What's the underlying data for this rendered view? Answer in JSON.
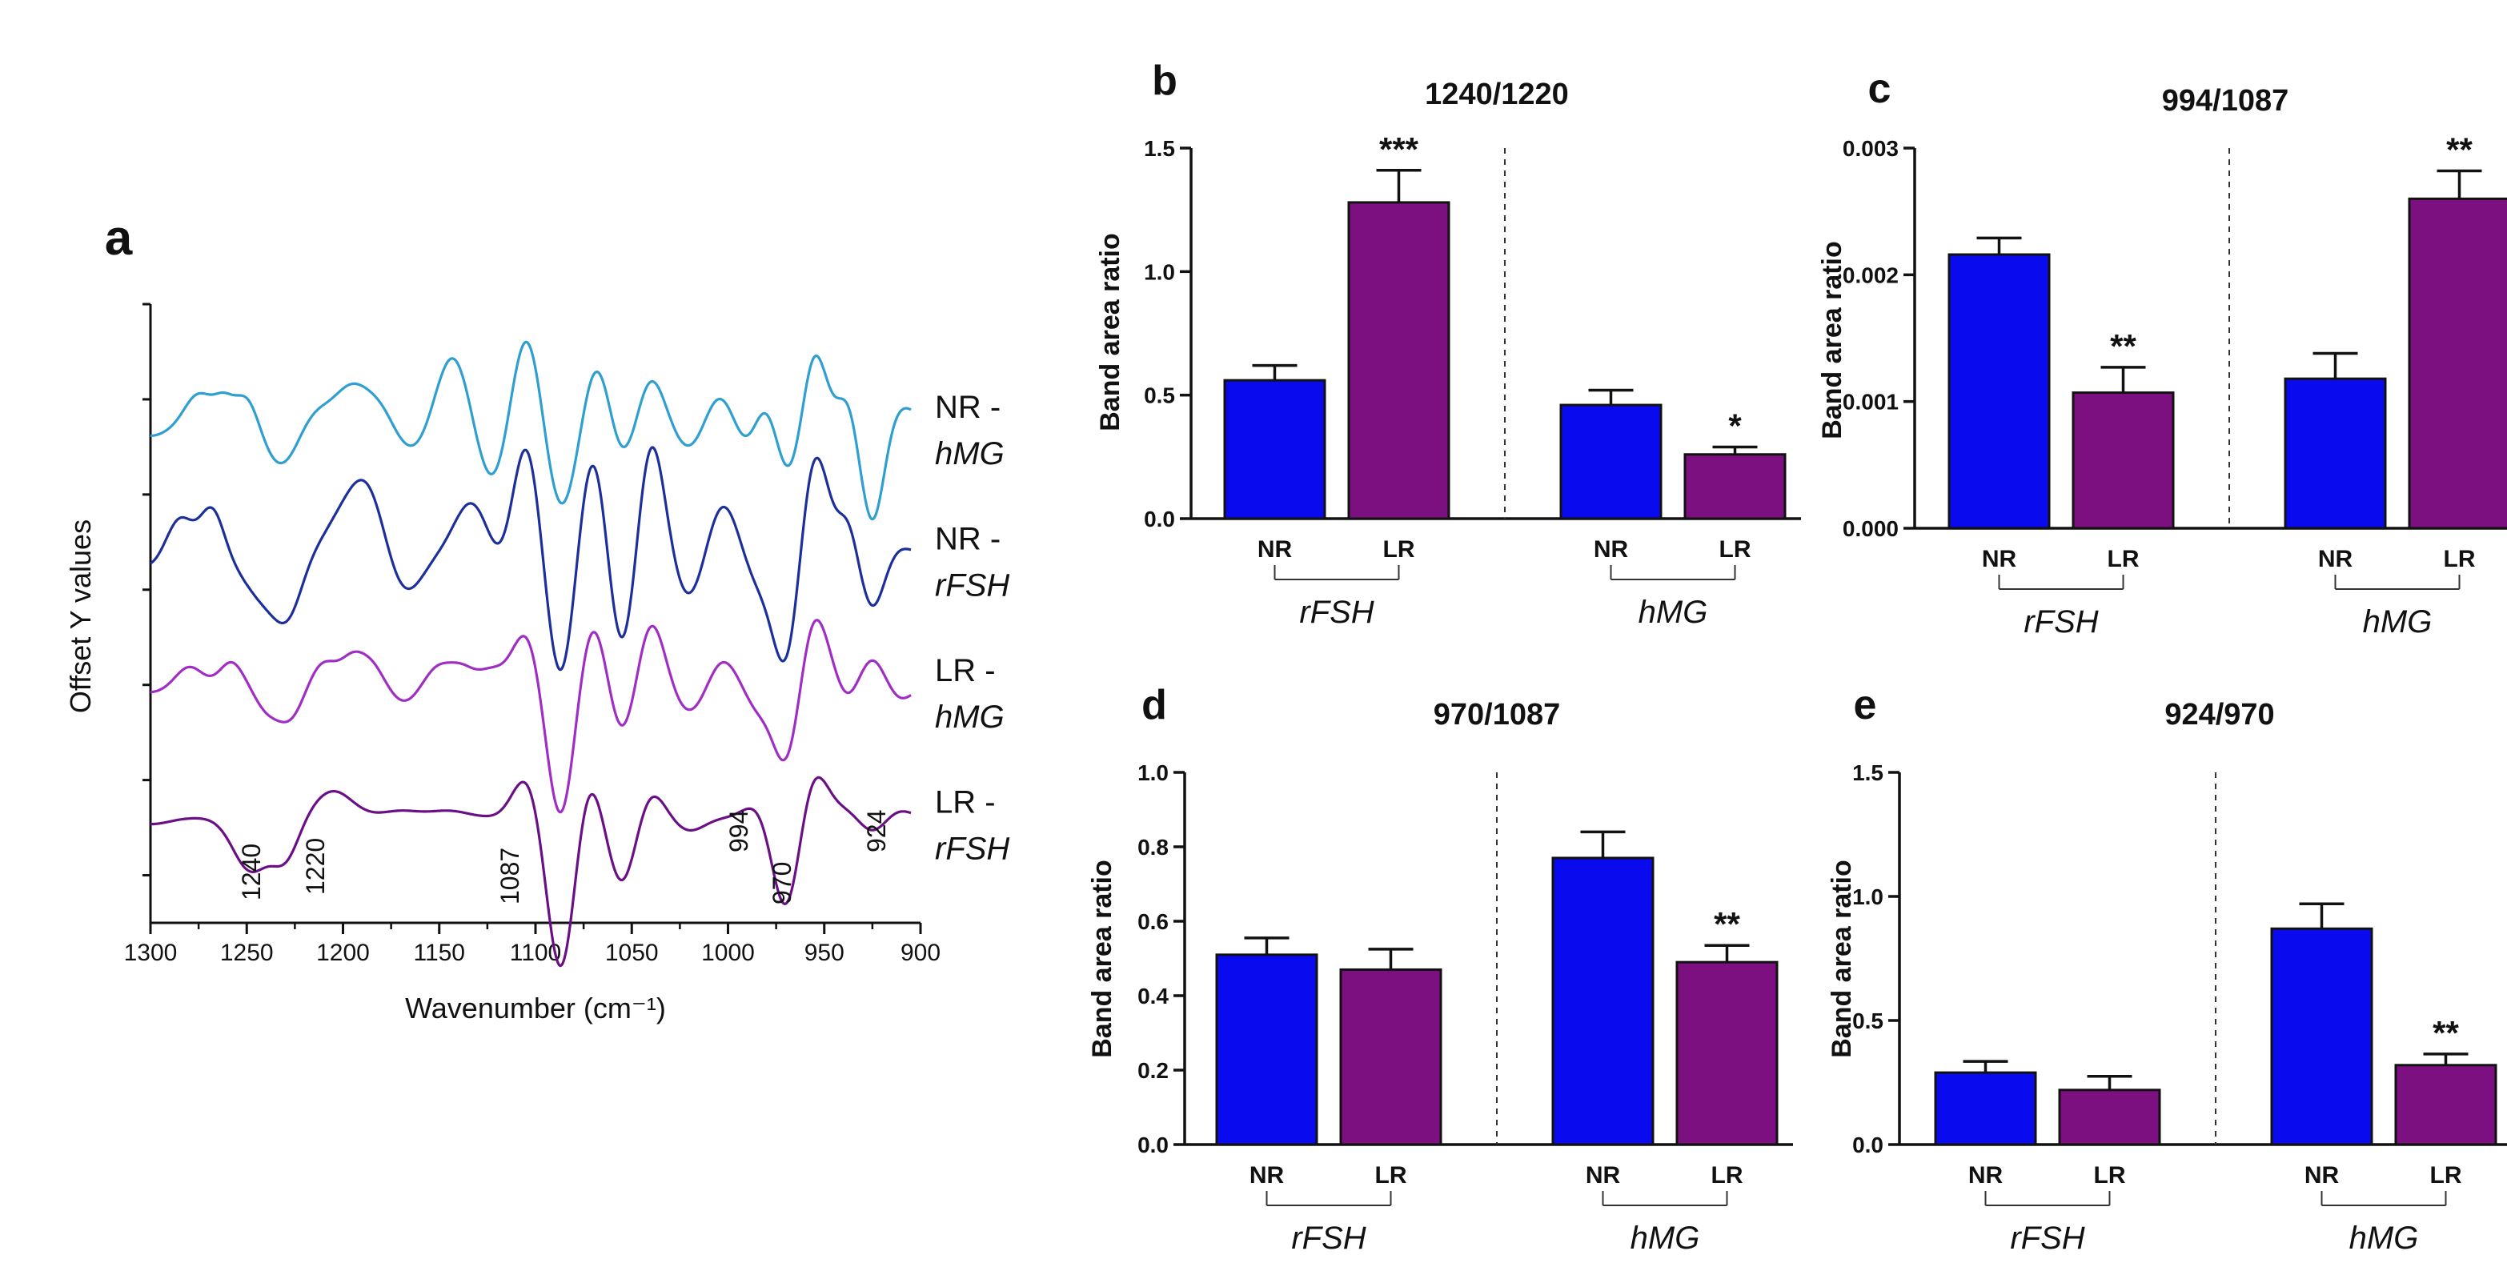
{
  "chart_data": [
    {
      "id": "a",
      "type": "line",
      "panel_label": "a",
      "xlabel": "Wavenumber (cm⁻¹)",
      "ylabel": "Offset Y values",
      "xlim": [
        1300,
        900
      ],
      "x_ticks": [
        "1300",
        "1250",
        "1200",
        "1150",
        "1100",
        "1050",
        "1000",
        "950",
        "900"
      ],
      "series": [
        {
          "name": "NR - hMG",
          "label_top": "NR -",
          "label_bottom": "hMG",
          "color": "#2e9fd0",
          "offset": 3.3,
          "peaks": [
            [
              1300,
              -0.1,
              10
            ],
            [
              1275,
              0.22,
              7
            ],
            [
              1262,
              0.16,
              5
            ],
            [
              1250,
              0.22,
              6
            ],
            [
              1232,
              -0.32,
              9
            ],
            [
              1215,
              0.1,
              8
            ],
            [
              1195,
              0.28,
              9
            ],
            [
              1180,
              0.12,
              7
            ],
            [
              1163,
              -0.22,
              10
            ],
            [
              1143,
              0.55,
              9
            ],
            [
              1122,
              -0.5,
              9
            ],
            [
              1105,
              0.75,
              8
            ],
            [
              1087,
              -0.68,
              8
            ],
            [
              1068,
              0.48,
              7
            ],
            [
              1055,
              -0.3,
              7
            ],
            [
              1040,
              0.35,
              7
            ],
            [
              1020,
              -0.2,
              8
            ],
            [
              1005,
              0.22,
              7
            ],
            [
              990,
              -0.18,
              6
            ],
            [
              978,
              0.3,
              7
            ],
            [
              970,
              -0.5,
              7
            ],
            [
              955,
              0.55,
              6
            ],
            [
              938,
              0.2,
              5
            ],
            [
              925,
              -0.75,
              6
            ],
            [
              912,
              0.1,
              6
            ],
            [
              905,
              0.05,
              5
            ]
          ]
        },
        {
          "name": "NR - rFSH",
          "label_top": "NR -",
          "label_bottom": "rFSH",
          "color": "#1c2f9b",
          "offset": 2.3,
          "peaks": [
            [
              1300,
              -0.1,
              10
            ],
            [
              1285,
              0.3,
              7
            ],
            [
              1268,
              0.35,
              6
            ],
            [
              1240,
              -0.35,
              11
            ],
            [
              1228,
              -0.3,
              7
            ],
            [
              1200,
              0.25,
              10
            ],
            [
              1187,
              0.45,
              9
            ],
            [
              1168,
              -0.3,
              9
            ],
            [
              1133,
              0.4,
              9
            ],
            [
              1118,
              -0.15,
              7
            ],
            [
              1105,
              0.85,
              7
            ],
            [
              1087,
              -0.95,
              7
            ],
            [
              1070,
              0.8,
              7
            ],
            [
              1055,
              -0.8,
              7
            ],
            [
              1040,
              0.9,
              7
            ],
            [
              1020,
              -0.35,
              8
            ],
            [
              1003,
              0.4,
              8
            ],
            [
              985,
              -0.2,
              7
            ],
            [
              970,
              -0.85,
              7
            ],
            [
              955,
              0.8,
              7
            ],
            [
              938,
              0.25,
              5
            ],
            [
              925,
              -0.4,
              6
            ],
            [
              910,
              0.05,
              6
            ]
          ]
        },
        {
          "name": "LR - hMG",
          "label_top": "LR -",
          "label_bottom": "hMG",
          "color": "#a02ec4",
          "offset": 1.3,
          "peaks": [
            [
              1300,
              -0.05,
              10
            ],
            [
              1280,
              0.15,
              7
            ],
            [
              1258,
              0.18,
              6
            ],
            [
              1240,
              -0.15,
              6
            ],
            [
              1228,
              -0.25,
              7
            ],
            [
              1210,
              0.18,
              7
            ],
            [
              1195,
              0.2,
              6
            ],
            [
              1185,
              0.15,
              6
            ],
            [
              1168,
              -0.12,
              7
            ],
            [
              1150,
              0.15,
              7
            ],
            [
              1138,
              0.12,
              6
            ],
            [
              1123,
              0.12,
              7
            ],
            [
              1105,
              0.4,
              7
            ],
            [
              1087,
              -1.0,
              7
            ],
            [
              1070,
              0.5,
              7
            ],
            [
              1055,
              -0.4,
              7
            ],
            [
              1040,
              0.5,
              7
            ],
            [
              1020,
              -0.2,
              8
            ],
            [
              1003,
              0.2,
              7
            ],
            [
              985,
              -0.15,
              6
            ],
            [
              970,
              -0.6,
              7
            ],
            [
              955,
              0.55,
              7
            ],
            [
              938,
              -0.1,
              5
            ],
            [
              925,
              0.2,
              6
            ],
            [
              910,
              -0.1,
              6
            ]
          ]
        },
        {
          "name": "LR - rFSH",
          "label_top": "LR -",
          "label_bottom": "rFSH",
          "color": "#6a0f86",
          "offset": 0.3,
          "peaks": [
            [
              1300,
              -0.05,
              10
            ],
            [
              1285,
              0.0,
              7
            ],
            [
              1248,
              -0.4,
              9
            ],
            [
              1230,
              -0.3,
              7
            ],
            [
              1205,
              0.2,
              10
            ],
            [
              1170,
              0.05,
              10
            ],
            [
              1145,
              0.05,
              10
            ],
            [
              1105,
              0.3,
              7
            ],
            [
              1087,
              -1.15,
              7
            ],
            [
              1072,
              0.3,
              6
            ],
            [
              1055,
              -0.5,
              7
            ],
            [
              1040,
              0.2,
              7
            ],
            [
              1020,
              -0.1,
              8
            ],
            [
              1003,
              0.0,
              7
            ],
            [
              985,
              0.1,
              7
            ],
            [
              970,
              -0.7,
              7
            ],
            [
              955,
              0.35,
              7
            ],
            [
              940,
              0.05,
              6
            ],
            [
              925,
              -0.1,
              6
            ],
            [
              910,
              0.05,
              6
            ]
          ]
        }
      ],
      "annotations": [
        "1240",
        "1220",
        "1087",
        "994",
        "970",
        "924"
      ]
    },
    {
      "id": "b",
      "type": "bar",
      "panel_label": "b",
      "title": "1240/1220",
      "ylabel": "Band area ratio",
      "ylim": [
        0,
        1.5
      ],
      "y_ticks": [
        "0.0",
        "0.5",
        "1.0",
        "1.5"
      ],
      "y_tick_values": [
        0,
        0.5,
        1.0,
        1.5
      ],
      "groups": [
        {
          "name": "rFSH"
        },
        {
          "name": "hMG"
        }
      ],
      "categories": [
        "NR",
        "LR",
        "NR",
        "LR"
      ],
      "colors": [
        "#0a0aee",
        "#7d1080",
        "#0a0aee",
        "#7d1080"
      ],
      "values": [
        0.56,
        1.28,
        0.46,
        0.26
      ],
      "errors": [
        0.06,
        0.13,
        0.06,
        0.03
      ],
      "significance": [
        "",
        "***",
        "",
        "*"
      ]
    },
    {
      "id": "c",
      "type": "bar",
      "panel_label": "c",
      "title": "994/1087",
      "ylabel": "Band area ratio",
      "ylim": [
        0,
        0.003
      ],
      "y_ticks": [
        "0.000",
        "0.001",
        "0.002",
        "0.003"
      ],
      "y_tick_values": [
        0,
        0.001,
        0.002,
        0.003
      ],
      "groups": [
        {
          "name": "rFSH"
        },
        {
          "name": "hMG"
        }
      ],
      "categories": [
        "NR",
        "LR",
        "NR",
        "LR"
      ],
      "colors": [
        "#0a0aee",
        "#7d1080",
        "#0a0aee",
        "#7d1080"
      ],
      "values": [
        0.00216,
        0.00107,
        0.00118,
        0.0026
      ],
      "errors": [
        0.00013,
        0.0002,
        0.0002,
        0.00022
      ],
      "significance": [
        "",
        "**",
        "",
        "**"
      ]
    },
    {
      "id": "d",
      "type": "bar",
      "panel_label": "d",
      "title": "970/1087",
      "ylabel": "Band area ratio",
      "ylim": [
        0,
        1.0
      ],
      "y_ticks": [
        "0.0",
        "0.2",
        "0.4",
        "0.6",
        "0.8",
        "1.0"
      ],
      "y_tick_values": [
        0,
        0.2,
        0.4,
        0.6,
        0.8,
        1.0
      ],
      "groups": [
        {
          "name": "rFSH"
        },
        {
          "name": "hMG"
        }
      ],
      "categories": [
        "NR",
        "LR",
        "NR",
        "LR"
      ],
      "colors": [
        "#0a0aee",
        "#7d1080",
        "#0a0aee",
        "#7d1080"
      ],
      "values": [
        0.51,
        0.47,
        0.77,
        0.49
      ],
      "errors": [
        0.045,
        0.055,
        0.07,
        0.045
      ],
      "significance": [
        "",
        "",
        "",
        "**"
      ]
    },
    {
      "id": "e",
      "type": "bar",
      "panel_label": "e",
      "title": "924/970",
      "ylabel": "Band area ratio",
      "ylim": [
        0,
        1.5
      ],
      "y_ticks": [
        "0.0",
        "0.5",
        "1.0",
        "1.5"
      ],
      "y_tick_values": [
        0,
        0.5,
        1.0,
        1.5
      ],
      "groups": [
        {
          "name": "rFSH"
        },
        {
          "name": "hMG"
        }
      ],
      "categories": [
        "NR",
        "LR",
        "NR",
        "LR"
      ],
      "colors": [
        "#0a0aee",
        "#7d1080",
        "#0a0aee",
        "#7d1080"
      ],
      "values": [
        0.29,
        0.22,
        0.87,
        0.32
      ],
      "errors": [
        0.045,
        0.055,
        0.1,
        0.045
      ],
      "significance": [
        "",
        "",
        "",
        "**"
      ]
    }
  ]
}
